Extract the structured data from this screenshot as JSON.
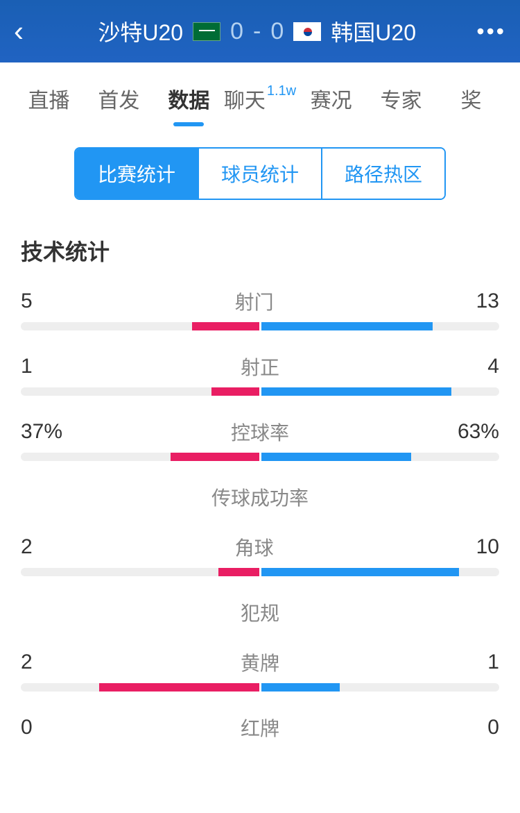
{
  "header": {
    "team_home": "沙特U20",
    "team_away": "韩国U20",
    "score_home": "0",
    "score_away": "0"
  },
  "nav_tabs": [
    {
      "label": "直播",
      "active": false
    },
    {
      "label": "首发",
      "active": false
    },
    {
      "label": "数据",
      "active": true
    },
    {
      "label": "聊天",
      "active": false,
      "badge": "1.1w"
    },
    {
      "label": "赛况",
      "active": false
    },
    {
      "label": "专家",
      "active": false
    },
    {
      "label": "奖金",
      "active": false,
      "clipped": "奖"
    }
  ],
  "sub_tabs": [
    {
      "label": "比赛统计",
      "active": true
    },
    {
      "label": "球员统计",
      "active": false
    },
    {
      "label": "路径热区",
      "active": false
    }
  ],
  "section_title": "技术统计",
  "colors": {
    "home_bar": "#e91e63",
    "away_bar": "#2196f3",
    "bar_bg": "#eeeeee",
    "accent": "#2196f3"
  },
  "stats": [
    {
      "name": "射门",
      "home": "5",
      "away": "13",
      "home_pct": 28,
      "away_pct": 72
    },
    {
      "name": "射正",
      "home": "1",
      "away": "4",
      "home_pct": 20,
      "away_pct": 80
    },
    {
      "name": "控球率",
      "home": "37%",
      "away": "63%",
      "home_pct": 37,
      "away_pct": 63
    },
    {
      "name": "传球成功率",
      "home": "",
      "away": "",
      "home_pct": 0,
      "away_pct": 0
    },
    {
      "name": "角球",
      "home": "2",
      "away": "10",
      "home_pct": 17,
      "away_pct": 83
    },
    {
      "name": "犯规",
      "home": "",
      "away": "",
      "home_pct": 0,
      "away_pct": 0
    },
    {
      "name": "黄牌",
      "home": "2",
      "away": "1",
      "home_pct": 67,
      "away_pct": 33
    },
    {
      "name": "红牌",
      "home": "0",
      "away": "0",
      "home_pct": 0,
      "away_pct": 0
    }
  ]
}
